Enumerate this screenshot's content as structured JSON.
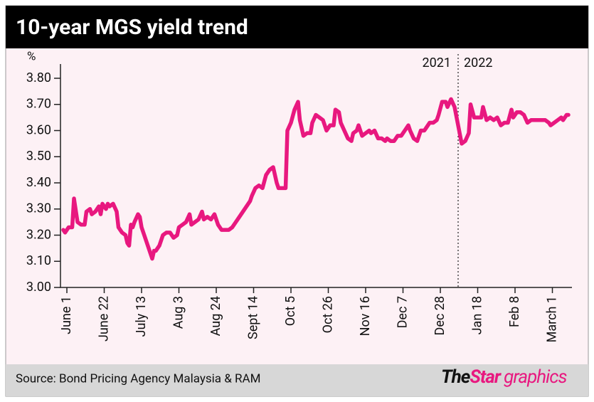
{
  "chart_data": {
    "type": "line",
    "title": "10-year MGS yield trend",
    "y_unit": "%",
    "source": "Source: Bond Pricing Agency Malaysia & RAM",
    "logo": {
      "the": "The",
      "star": "Star",
      "graphics": "graphics"
    },
    "year_divider": {
      "x": 220,
      "left_label": "2021",
      "right_label": "2022"
    },
    "xlim": [
      -4,
      284
    ],
    "xticks": [
      {
        "value": 0,
        "label": "June 1"
      },
      {
        "value": 21,
        "label": "June 22"
      },
      {
        "value": 42,
        "label": "July 13"
      },
      {
        "value": 63,
        "label": "Aug 3"
      },
      {
        "value": 84,
        "label": "Aug 24"
      },
      {
        "value": 105,
        "label": "Sept 14"
      },
      {
        "value": 126,
        "label": "Oct 5"
      },
      {
        "value": 147,
        "label": "Oct 26"
      },
      {
        "value": 168,
        "label": "Nov 16"
      },
      {
        "value": 189,
        "label": "Dec 7"
      },
      {
        "value": 210,
        "label": "Dec 28"
      },
      {
        "value": 231,
        "label": "Jan 18"
      },
      {
        "value": 252,
        "label": "Feb 8"
      },
      {
        "value": 273,
        "label": "March 1"
      }
    ],
    "ylim": [
      3.0,
      3.8
    ],
    "yticks": [
      {
        "value": 3.0,
        "label": "3.00"
      },
      {
        "value": 3.1,
        "label": "3.10"
      },
      {
        "value": 3.2,
        "label": "3.20"
      },
      {
        "value": 3.3,
        "label": "3.30"
      },
      {
        "value": 3.4,
        "label": "3.40"
      },
      {
        "value": 3.5,
        "label": "3.50"
      },
      {
        "value": 3.6,
        "label": "3.60"
      },
      {
        "value": 3.7,
        "label": "3.70"
      },
      {
        "value": 3.8,
        "label": "3.80"
      }
    ],
    "series": [
      {
        "name": "10-year MGS yield",
        "color": "#e8187f",
        "x": [
          -2,
          -1,
          1,
          3,
          4,
          6,
          8,
          10,
          11,
          13,
          14,
          16,
          18,
          19,
          20,
          22,
          23,
          24,
          26,
          28,
          29,
          31,
          33,
          34,
          35,
          36,
          37,
          38,
          40,
          41,
          42,
          44,
          46,
          47,
          48,
          49,
          50,
          52,
          54,
          56,
          58,
          60,
          62,
          63,
          65,
          67,
          69,
          70,
          72,
          74,
          76,
          77,
          79,
          81,
          83,
          85,
          87,
          89,
          91,
          93,
          95,
          97,
          99,
          101,
          103,
          104,
          106,
          108,
          110,
          112,
          114,
          116,
          118,
          119,
          122,
          123,
          124,
          126,
          128,
          130,
          131,
          133,
          135,
          137,
          138,
          140,
          142,
          144,
          146,
          148,
          150,
          151,
          153,
          154,
          156,
          158,
          160,
          161,
          163,
          164,
          166,
          168,
          170,
          171,
          173,
          175,
          177,
          179,
          180,
          182,
          184,
          186,
          188,
          190,
          192,
          193,
          195,
          197,
          199,
          201,
          202,
          204,
          206,
          208,
          209,
          211,
          213,
          214,
          216,
          218,
          220,
          222,
          224,
          226,
          227,
          229,
          231,
          233,
          234,
          236,
          238,
          240,
          242,
          244,
          246,
          248,
          250,
          251,
          253,
          255,
          257,
          259,
          261,
          263,
          265,
          267,
          269,
          271,
          272,
          274,
          276,
          278,
          279,
          281,
          282
        ],
        "values": [
          3.22,
          3.21,
          3.23,
          3.23,
          3.34,
          3.25,
          3.24,
          3.24,
          3.29,
          3.3,
          3.28,
          3.29,
          3.31,
          3.28,
          3.32,
          3.3,
          3.32,
          3.31,
          3.32,
          3.29,
          3.23,
          3.21,
          3.2,
          3.17,
          3.16,
          3.24,
          3.23,
          3.25,
          3.28,
          3.27,
          3.23,
          3.19,
          3.15,
          3.13,
          3.11,
          3.14,
          3.14,
          3.16,
          3.2,
          3.21,
          3.21,
          3.19,
          3.2,
          3.23,
          3.24,
          3.25,
          3.28,
          3.24,
          3.25,
          3.26,
          3.29,
          3.26,
          3.27,
          3.26,
          3.28,
          3.24,
          3.22,
          3.22,
          3.22,
          3.23,
          3.25,
          3.27,
          3.29,
          3.31,
          3.33,
          3.35,
          3.38,
          3.39,
          3.38,
          3.43,
          3.45,
          3.46,
          3.4,
          3.38,
          3.38,
          3.38,
          3.6,
          3.63,
          3.68,
          3.71,
          3.64,
          3.58,
          3.59,
          3.59,
          3.63,
          3.66,
          3.65,
          3.64,
          3.6,
          3.62,
          3.62,
          3.68,
          3.67,
          3.63,
          3.6,
          3.57,
          3.56,
          3.59,
          3.6,
          3.62,
          3.58,
          3.59,
          3.6,
          3.59,
          3.6,
          3.57,
          3.57,
          3.56,
          3.57,
          3.56,
          3.56,
          3.58,
          3.58,
          3.6,
          3.62,
          3.6,
          3.57,
          3.56,
          3.6,
          3.6,
          3.61,
          3.63,
          3.63,
          3.64,
          3.66,
          3.71,
          3.71,
          3.69,
          3.72,
          3.69,
          3.62,
          3.55,
          3.56,
          3.59,
          3.7,
          3.65,
          3.65,
          3.65,
          3.69,
          3.64,
          3.65,
          3.64,
          3.65,
          3.62,
          3.63,
          3.63,
          3.68,
          3.65,
          3.67,
          3.67,
          3.66,
          3.63,
          3.64,
          3.64,
          3.64,
          3.64,
          3.64,
          3.63,
          3.62,
          3.63,
          3.64,
          3.65,
          3.64,
          3.66,
          3.66
        ]
      }
    ]
  }
}
